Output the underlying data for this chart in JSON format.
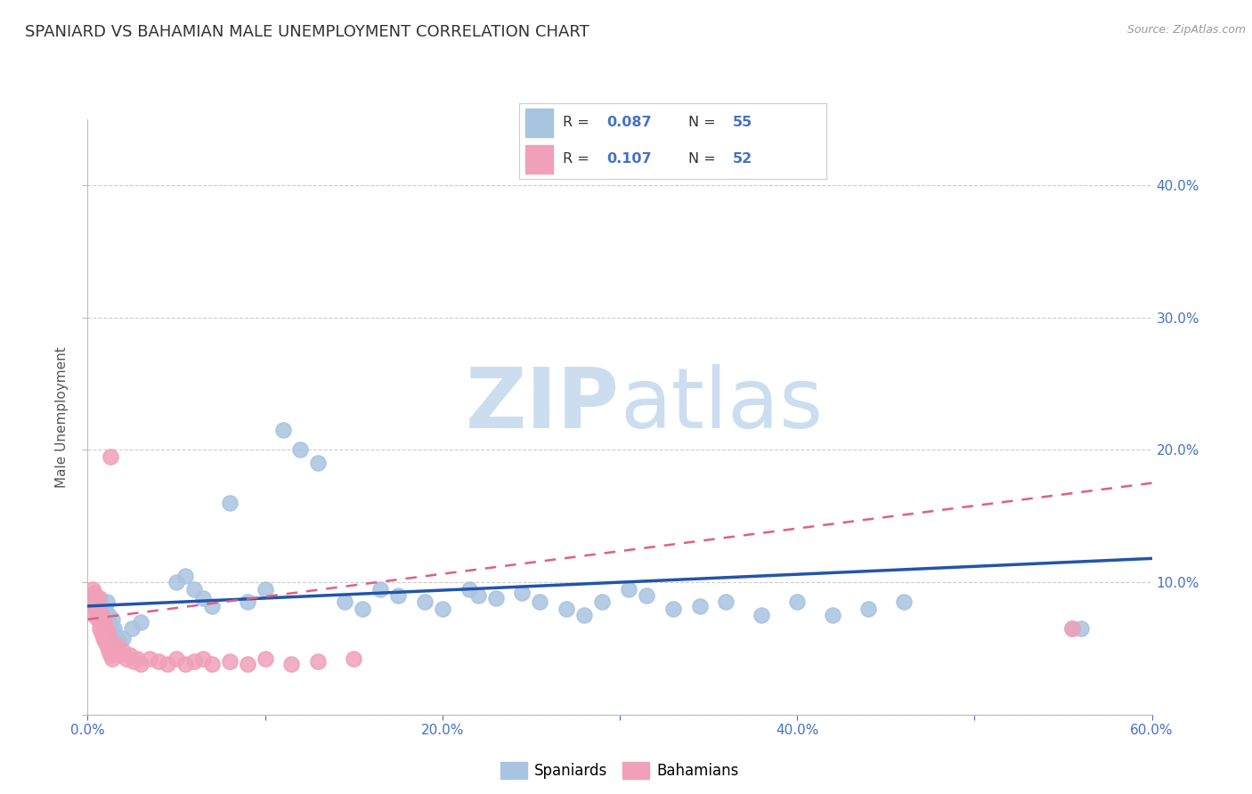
{
  "title": "SPANIARD VS BAHAMIAN MALE UNEMPLOYMENT CORRELATION CHART",
  "source": "Source: ZipAtlas.com",
  "ylabel": "Male Unemployment",
  "xlim": [
    0.0,
    0.6
  ],
  "ylim": [
    0.0,
    0.45
  ],
  "spaniards_color": "#a8c4e0",
  "spaniards_edge_color": "#a8c4e0",
  "bahamians_color": "#f0a0b8",
  "bahamians_edge_color": "#f0a0b8",
  "spaniards_line_color": "#2255aa",
  "bahamians_line_color": "#e06080",
  "watermark_color": "#ccddf0",
  "title_fontsize": 13,
  "axis_label_fontsize": 11,
  "tick_fontsize": 11,
  "tick_color": "#4472c4",
  "background_color": "#ffffff",
  "grid_color": "#cccccc",
  "blue_line_y0": 0.082,
  "blue_line_y1": 0.118,
  "pink_line_y0": 0.072,
  "pink_line_y1": 0.175,
  "spaniards_x": [
    0.002,
    0.004,
    0.005,
    0.006,
    0.007,
    0.008,
    0.009,
    0.01,
    0.011,
    0.012,
    0.013,
    0.014,
    0.015,
    0.016,
    0.018,
    0.02,
    0.025,
    0.03,
    0.05,
    0.055,
    0.06,
    0.065,
    0.07,
    0.08,
    0.09,
    0.1,
    0.11,
    0.12,
    0.13,
    0.145,
    0.155,
    0.165,
    0.175,
    0.19,
    0.2,
    0.215,
    0.22,
    0.23,
    0.245,
    0.255,
    0.27,
    0.28,
    0.29,
    0.305,
    0.315,
    0.33,
    0.345,
    0.36,
    0.38,
    0.4,
    0.42,
    0.44,
    0.46,
    0.555,
    0.56
  ],
  "spaniards_y": [
    0.085,
    0.09,
    0.082,
    0.078,
    0.088,
    0.075,
    0.07,
    0.08,
    0.085,
    0.075,
    0.068,
    0.072,
    0.065,
    0.06,
    0.055,
    0.058,
    0.065,
    0.07,
    0.1,
    0.105,
    0.095,
    0.088,
    0.082,
    0.16,
    0.085,
    0.095,
    0.215,
    0.2,
    0.19,
    0.085,
    0.08,
    0.095,
    0.09,
    0.085,
    0.08,
    0.095,
    0.09,
    0.088,
    0.092,
    0.085,
    0.08,
    0.075,
    0.085,
    0.095,
    0.09,
    0.08,
    0.082,
    0.085,
    0.075,
    0.085,
    0.075,
    0.08,
    0.085,
    0.065,
    0.065
  ],
  "bahamians_x": [
    0.001,
    0.002,
    0.002,
    0.003,
    0.003,
    0.004,
    0.004,
    0.005,
    0.005,
    0.006,
    0.006,
    0.007,
    0.007,
    0.008,
    0.008,
    0.009,
    0.009,
    0.01,
    0.01,
    0.011,
    0.011,
    0.012,
    0.012,
    0.013,
    0.013,
    0.014,
    0.015,
    0.016,
    0.017,
    0.018,
    0.02,
    0.022,
    0.024,
    0.026,
    0.028,
    0.03,
    0.035,
    0.04,
    0.045,
    0.05,
    0.055,
    0.06,
    0.065,
    0.07,
    0.08,
    0.09,
    0.1,
    0.115,
    0.13,
    0.15,
    0.013,
    0.555
  ],
  "bahamians_y": [
    0.085,
    0.082,
    0.09,
    0.088,
    0.095,
    0.075,
    0.092,
    0.078,
    0.085,
    0.072,
    0.088,
    0.065,
    0.078,
    0.062,
    0.075,
    0.058,
    0.07,
    0.055,
    0.068,
    0.052,
    0.065,
    0.048,
    0.06,
    0.045,
    0.055,
    0.042,
    0.05,
    0.048,
    0.052,
    0.045,
    0.048,
    0.042,
    0.045,
    0.04,
    0.042,
    0.038,
    0.042,
    0.04,
    0.038,
    0.042,
    0.038,
    0.04,
    0.042,
    0.038,
    0.04,
    0.038,
    0.042,
    0.038,
    0.04,
    0.042,
    0.195,
    0.065
  ]
}
